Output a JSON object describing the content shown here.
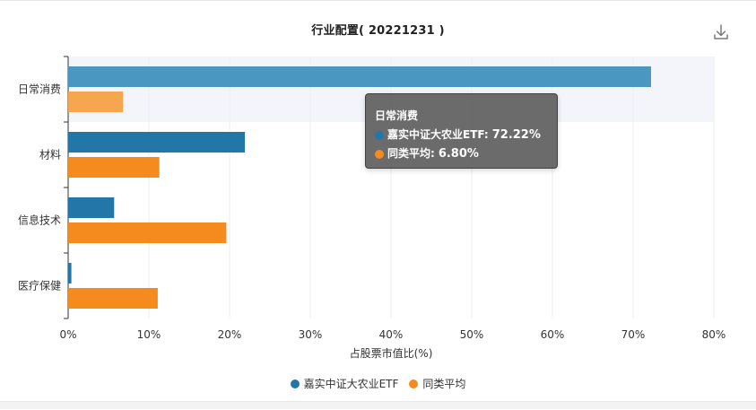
{
  "chart_data": {
    "type": "bar",
    "orientation": "horizontal",
    "title": "行业配置( 20221231 )",
    "categories": [
      "日常消费",
      "材料",
      "信息技术",
      "医疗保健"
    ],
    "series": [
      {
        "name": "嘉实中证大农业ETF",
        "color": "#2377a8",
        "values": [
          72.22,
          21.9,
          5.7,
          0.4
        ]
      },
      {
        "name": "同类平均",
        "color": "#f58a1f",
        "values": [
          6.8,
          11.3,
          19.6,
          11.1
        ]
      }
    ],
    "xlabel": "占股票市值比(%)",
    "ylabel": "",
    "xlim": [
      0,
      80
    ],
    "ticks": [
      "0%",
      "10%",
      "20%",
      "30%",
      "40%",
      "50%",
      "60%",
      "70%",
      "80%"
    ],
    "grid": true,
    "legend_position": "bottom-center",
    "highlighted_category": "日常消费"
  },
  "tooltip": {
    "category": "日常消费",
    "rows": [
      {
        "label": "嘉实中证大农业ETF:",
        "value": "72.22%",
        "color": "#2377a8"
      },
      {
        "label": "同类平均:",
        "value": "6.80%",
        "color": "#f58a1f"
      }
    ]
  },
  "toolbar": {
    "download_icon": "download-icon"
  }
}
